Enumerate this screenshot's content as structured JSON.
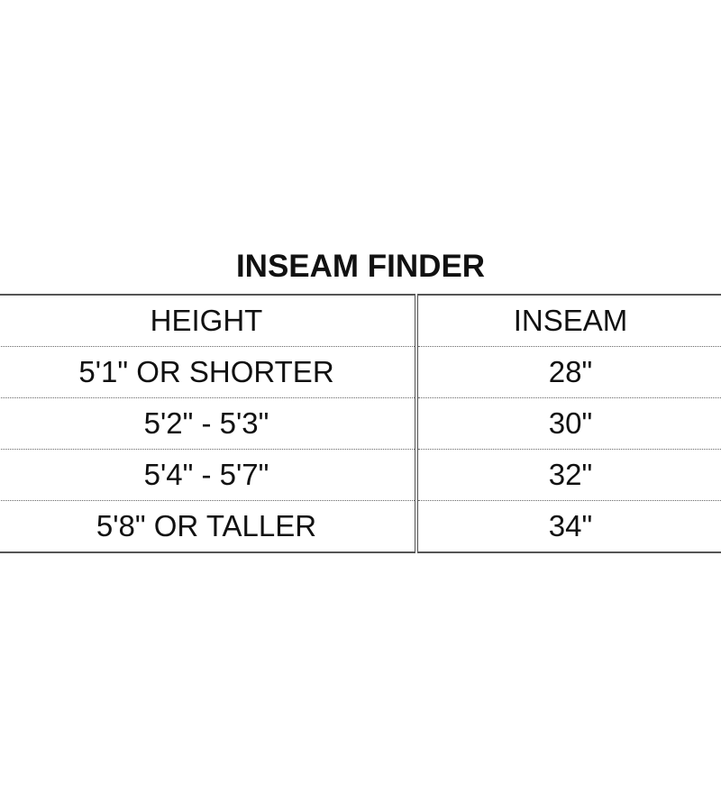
{
  "title": "INSEAM FINDER",
  "table": {
    "headers": [
      "HEIGHT",
      "INSEAM"
    ],
    "rows": [
      [
        "5'1\" OR SHORTER",
        "28\""
      ],
      [
        "5'2\" - 5'3\"",
        "30\""
      ],
      [
        "5'4\" - 5'7\"",
        "32\""
      ],
      [
        "5'8\" OR TALLER",
        "34\""
      ]
    ]
  }
}
